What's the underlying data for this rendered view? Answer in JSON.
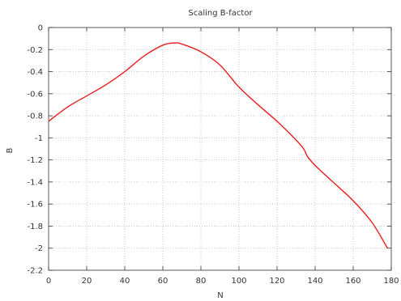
{
  "chart_data": {
    "type": "line",
    "title": "Scaling B-factor",
    "xlabel": "N",
    "ylabel": "B",
    "xlim": [
      0,
      180
    ],
    "ylim": [
      -2.2,
      0
    ],
    "grid": true,
    "xticks": [
      0,
      20,
      40,
      60,
      80,
      100,
      120,
      140,
      160,
      180
    ],
    "yticks": [
      0,
      -0.2,
      -0.4,
      -0.6,
      -0.8,
      -1,
      -1.2,
      -1.4,
      -1.6,
      -1.8,
      -2,
      -2.2
    ],
    "xtick_labels": [
      "0",
      "20",
      "40",
      "60",
      "80",
      "100",
      "120",
      "140",
      "160",
      "180"
    ],
    "ytick_labels": [
      "0",
      "-0.2",
      "-0.4",
      "-0.6",
      "-0.8",
      "-1",
      "-1.2",
      "-1.4",
      "-1.6",
      "-1.8",
      "-2",
      "-2.2"
    ],
    "series": [
      {
        "color": "#ee1c1c",
        "x": [
          0,
          10,
          20,
          30,
          40,
          50,
          60,
          66,
          70,
          80,
          90,
          100,
          110,
          120,
          130,
          134,
          136,
          140,
          150,
          160,
          170,
          178
        ],
        "y": [
          -0.85,
          -0.72,
          -0.62,
          -0.52,
          -0.4,
          -0.26,
          -0.16,
          -0.14,
          -0.15,
          -0.22,
          -0.34,
          -0.54,
          -0.7,
          -0.85,
          -1.02,
          -1.1,
          -1.17,
          -1.25,
          -1.41,
          -1.57,
          -1.77,
          -2.0
        ]
      }
    ]
  }
}
